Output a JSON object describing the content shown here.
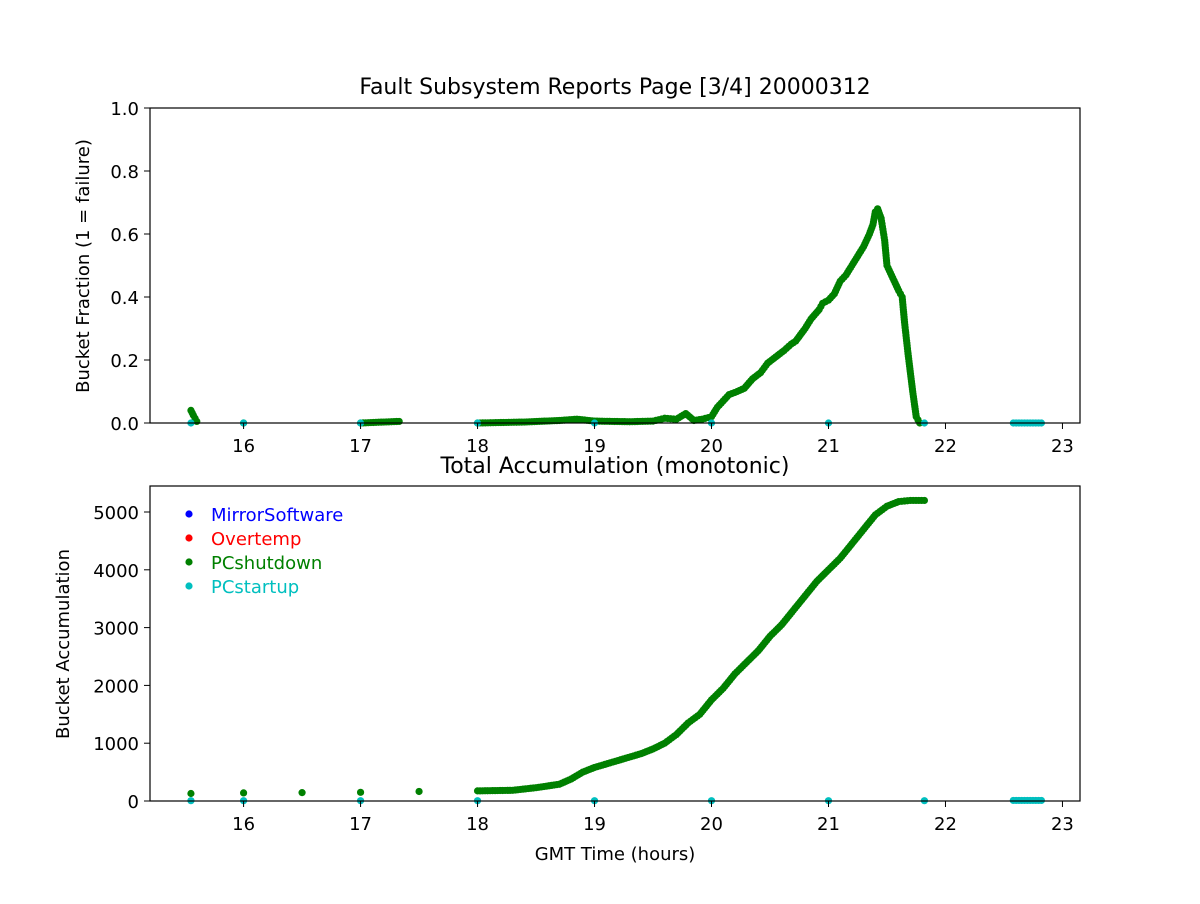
{
  "figure_title": "Fault Subsystem Reports Page [3/4] 20000312",
  "chart_data": [
    {
      "type": "scatter",
      "title": "Fault Subsystem Reports Page [3/4] 20000312",
      "xlabel": "",
      "ylabel": "Bucket Fraction (1 = failure)",
      "xlim": [
        15.2,
        23.15
      ],
      "ylim": [
        0,
        1.0
      ],
      "xticks": [
        16,
        17,
        18,
        19,
        20,
        21,
        22,
        23
      ],
      "yticks": [
        0.0,
        0.2,
        0.4,
        0.6,
        0.8,
        1.0
      ],
      "ytick_labels": [
        "0.0",
        "0.2",
        "0.4",
        "0.6",
        "0.8",
        "1.0"
      ],
      "grid": false,
      "series": [
        {
          "name": "PCshutdown",
          "color": "#008000",
          "points": [
            [
              15.55,
              0.04
            ],
            [
              15.57,
              0.025
            ],
            [
              15.6,
              0.005
            ],
            [
              16.0,
              0.0
            ],
            [
              17.0,
              0.0
            ],
            [
              17.33,
              0.005
            ],
            [
              18.0,
              0.0
            ],
            [
              18.4,
              0.003
            ],
            [
              18.7,
              0.008
            ],
            [
              18.85,
              0.012
            ],
            [
              19.0,
              0.006
            ],
            [
              19.3,
              0.004
            ],
            [
              19.5,
              0.006
            ],
            [
              19.6,
              0.015
            ],
            [
              19.7,
              0.012
            ],
            [
              19.78,
              0.03
            ],
            [
              19.85,
              0.008
            ],
            [
              19.92,
              0.012
            ],
            [
              20.0,
              0.02
            ],
            [
              20.05,
              0.05
            ],
            [
              20.1,
              0.07
            ],
            [
              20.15,
              0.09
            ],
            [
              20.22,
              0.1
            ],
            [
              20.28,
              0.11
            ],
            [
              20.35,
              0.14
            ],
            [
              20.42,
              0.16
            ],
            [
              20.48,
              0.19
            ],
            [
              20.55,
              0.21
            ],
            [
              20.62,
              0.23
            ],
            [
              20.68,
              0.25
            ],
            [
              20.72,
              0.26
            ],
            [
              20.8,
              0.3
            ],
            [
              20.85,
              0.33
            ],
            [
              20.92,
              0.36
            ],
            [
              20.95,
              0.38
            ],
            [
              21.0,
              0.39
            ],
            [
              21.05,
              0.41
            ],
            [
              21.1,
              0.45
            ],
            [
              21.15,
              0.47
            ],
            [
              21.2,
              0.5
            ],
            [
              21.25,
              0.53
            ],
            [
              21.3,
              0.56
            ],
            [
              21.35,
              0.6
            ],
            [
              21.38,
              0.63
            ],
            [
              21.4,
              0.67
            ],
            [
              21.42,
              0.68
            ],
            [
              21.45,
              0.65
            ],
            [
              21.48,
              0.58
            ],
            [
              21.5,
              0.5
            ],
            [
              21.55,
              0.46
            ],
            [
              21.6,
              0.42
            ],
            [
              21.63,
              0.4
            ],
            [
              21.65,
              0.32
            ],
            [
              21.68,
              0.22
            ],
            [
              21.72,
              0.1
            ],
            [
              21.75,
              0.02
            ],
            [
              21.78,
              0.0
            ]
          ]
        },
        {
          "name": "PCstartup",
          "color": "#00BFBF",
          "points": [
            [
              15.55,
              0.0
            ],
            [
              16.0,
              0.0
            ],
            [
              17.0,
              0.0
            ],
            [
              18.0,
              0.0
            ],
            [
              19.0,
              0.0
            ],
            [
              20.0,
              0.0
            ],
            [
              21.0,
              0.0
            ],
            [
              21.82,
              0.0
            ],
            [
              22.58,
              0.0
            ],
            [
              22.7,
              0.0
            ],
            [
              22.82,
              0.0
            ]
          ]
        }
      ]
    },
    {
      "type": "scatter",
      "title": "Total Accumulation (monotonic)",
      "xlabel": "GMT Time (hours)",
      "ylabel": "Bucket Accumulation",
      "xlim": [
        15.2,
        23.15
      ],
      "ylim": [
        0,
        5450
      ],
      "xticks": [
        16,
        17,
        18,
        19,
        20,
        21,
        22,
        23
      ],
      "yticks": [
        0,
        1000,
        2000,
        3000,
        4000,
        5000
      ],
      "ytick_labels": [
        "0",
        "1000",
        "2000",
        "3000",
        "4000",
        "5000"
      ],
      "grid": false,
      "legend": {
        "placement": "top-left",
        "entries": [
          {
            "label": "MirrorSoftware",
            "color": "#0000FF"
          },
          {
            "label": "Overtemp",
            "color": "#FF0000"
          },
          {
            "label": "PCshutdown",
            "color": "#008000"
          },
          {
            "label": "PCstartup",
            "color": "#00BFBF"
          }
        ]
      },
      "series": [
        {
          "name": "PCshutdown",
          "color": "#008000",
          "points": [
            [
              15.55,
              130
            ],
            [
              16.0,
              140
            ],
            [
              16.5,
              145
            ],
            [
              17.0,
              150
            ],
            [
              17.5,
              165
            ],
            [
              18.0,
              175
            ],
            [
              18.3,
              185
            ],
            [
              18.5,
              230
            ],
            [
              18.7,
              290
            ],
            [
              18.8,
              380
            ],
            [
              18.9,
              500
            ],
            [
              19.0,
              580
            ],
            [
              19.2,
              700
            ],
            [
              19.4,
              820
            ],
            [
              19.5,
              900
            ],
            [
              19.6,
              1000
            ],
            [
              19.7,
              1150
            ],
            [
              19.8,
              1350
            ],
            [
              19.9,
              1500
            ],
            [
              20.0,
              1750
            ],
            [
              20.1,
              1950
            ],
            [
              20.2,
              2200
            ],
            [
              20.3,
              2400
            ],
            [
              20.4,
              2600
            ],
            [
              20.5,
              2850
            ],
            [
              20.6,
              3050
            ],
            [
              20.7,
              3300
            ],
            [
              20.8,
              3550
            ],
            [
              20.9,
              3800
            ],
            [
              21.0,
              4000
            ],
            [
              21.1,
              4200
            ],
            [
              21.2,
              4450
            ],
            [
              21.3,
              4700
            ],
            [
              21.4,
              4950
            ],
            [
              21.5,
              5100
            ],
            [
              21.6,
              5180
            ],
            [
              21.7,
              5200
            ],
            [
              21.82,
              5200
            ]
          ]
        },
        {
          "name": "PCstartup",
          "color": "#00BFBF",
          "points": [
            [
              15.55,
              5
            ],
            [
              16.0,
              5
            ],
            [
              17.0,
              5
            ],
            [
              18.0,
              5
            ],
            [
              19.0,
              5
            ],
            [
              20.0,
              5
            ],
            [
              21.0,
              5
            ],
            [
              21.82,
              5
            ],
            [
              22.58,
              10
            ],
            [
              22.7,
              10
            ],
            [
              22.82,
              10
            ]
          ]
        }
      ]
    }
  ]
}
